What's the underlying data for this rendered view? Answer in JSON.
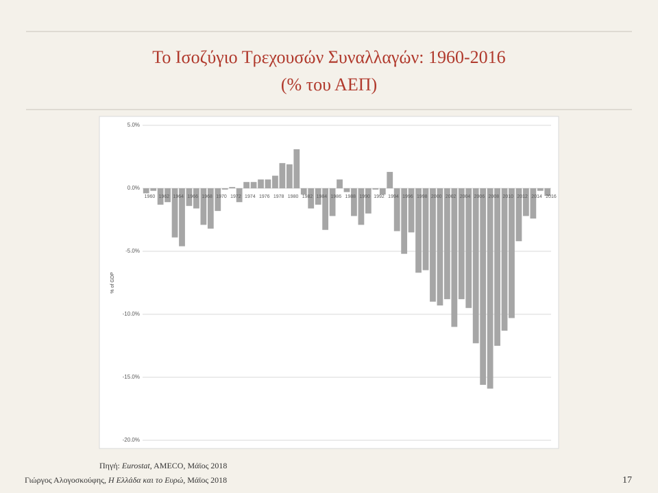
{
  "slide": {
    "title": "Το Ισοζύγιο Τρεχουσών Συναλλαγών: 1960-2016",
    "subtitle": "(% του ΑΕΠ)",
    "source": {
      "prefix": "Πηγή: ",
      "italic": "Eurostat",
      "rest": ", AMECO, Μάϊος 2018"
    },
    "footer": {
      "author": "Γιώργος Αλογοσκούφης, ",
      "italic": "Η Ελλάδα και το Ευρώ",
      "rest": ", Μάϊος 2018"
    },
    "page_number": "17"
  },
  "chart_data": {
    "type": "bar",
    "y_label": "% of GDP",
    "categories": [
      "1960",
      null,
      "1962",
      null,
      "1964",
      null,
      "1966",
      null,
      "1968",
      null,
      "1970",
      null,
      "1972",
      null,
      "1974",
      null,
      "1976",
      null,
      "1978",
      null,
      "1980",
      null,
      "1982",
      null,
      "1984",
      null,
      "1986",
      null,
      "1988",
      null,
      "1990",
      null,
      "1992",
      null,
      "1994",
      null,
      "1996",
      null,
      "1998",
      null,
      "2000",
      null,
      "2002",
      null,
      "2004",
      null,
      "2006",
      null,
      "2008",
      null,
      "2010",
      null,
      "2012",
      null,
      "2014",
      null,
      "2016"
    ],
    "values": [
      -0.4,
      -0.2,
      -1.3,
      -1.1,
      -3.9,
      -4.6,
      -1.4,
      -1.6,
      -2.9,
      -3.2,
      -1.8,
      -0.1,
      0.1,
      -1.1,
      0.5,
      0.5,
      0.7,
      0.7,
      1.0,
      2.0,
      1.9,
      3.1,
      -0.5,
      -1.6,
      -1.3,
      -3.3,
      -2.2,
      0.7,
      -0.3,
      -2.2,
      -2.9,
      -2.0,
      -0.1,
      -0.5,
      1.3,
      -3.4,
      -5.2,
      -3.5,
      -6.7,
      -6.5,
      -9.0,
      -9.3,
      -8.8,
      -11.0,
      -8.8,
      -9.5,
      -12.3,
      -15.6,
      -15.9,
      -12.5,
      -11.3,
      -10.3,
      -4.2,
      -2.2,
      -2.4,
      -0.2,
      -0.6
    ],
    "color": "#a6a6a6",
    "ylim": [
      -20,
      5
    ],
    "yticks": [
      {
        "value": -20,
        "label": "-20.0%"
      },
      {
        "value": -15,
        "label": "-15.0%"
      },
      {
        "value": -10,
        "label": "-10.0%"
      },
      {
        "value": -5,
        "label": "-5.0%"
      },
      {
        "value": 0,
        "label": "0.0%"
      },
      {
        "value": 5,
        "label": "5.0%"
      }
    ],
    "grid": true
  }
}
